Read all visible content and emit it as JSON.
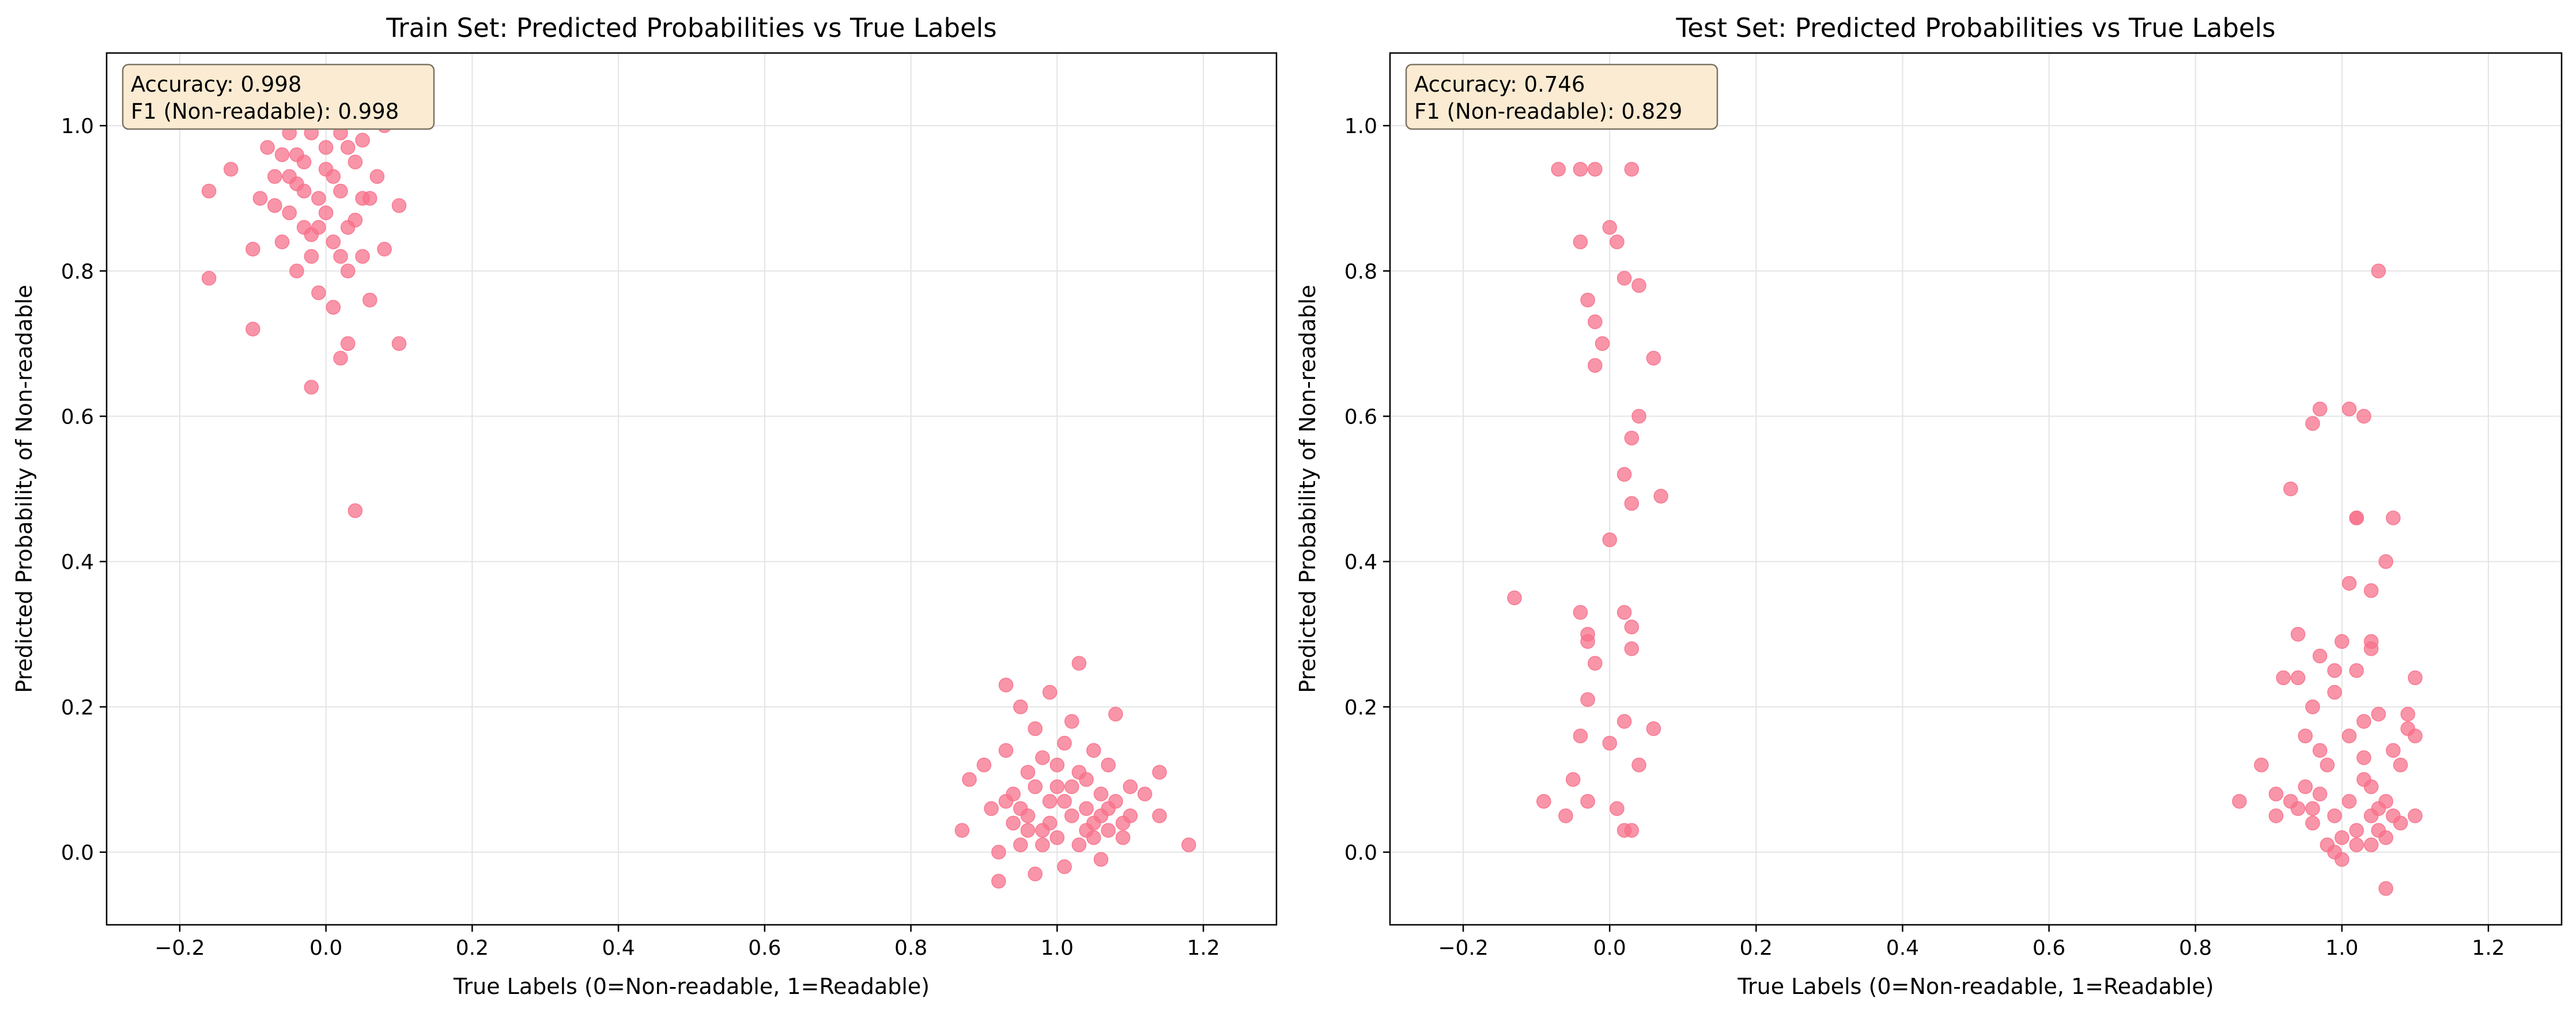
{
  "colors": {
    "point": "#f7718b",
    "annotation_bg": "#faebd2",
    "annotation_border": "#7d7464",
    "grid": "#e4e4e4",
    "axis": "#000000"
  },
  "chart_data": [
    {
      "type": "scatter",
      "title": "Train Set: Predicted Probabilities vs True Labels",
      "xlabel": "True Labels (0=Non-readable, 1=Readable)",
      "ylabel": "Predicted Probability of Non-readable",
      "xlim": [
        -0.3,
        1.3
      ],
      "ylim": [
        -0.1,
        1.1
      ],
      "xticks": [
        "−0.2",
        "0.0",
        "0.2",
        "0.4",
        "0.6",
        "0.8",
        "1.0",
        "1.2"
      ],
      "yticks": [
        "0.0",
        "0.2",
        "0.4",
        "0.6",
        "0.8",
        "1.0"
      ],
      "grid": true,
      "annotation": {
        "accuracy": "Accuracy: 0.998",
        "f1": "F1 (Non-readable): 0.998"
      },
      "series": [
        {
          "points": [
            [
              -0.16,
              0.91
            ],
            [
              -0.16,
              0.79
            ],
            [
              -0.13,
              0.94
            ],
            [
              -0.1,
              0.72
            ],
            [
              -0.1,
              0.83
            ],
            [
              -0.09,
              0.9
            ],
            [
              -0.08,
              0.97
            ],
            [
              -0.07,
              0.93
            ],
            [
              -0.06,
              0.96
            ],
            [
              -0.06,
              0.84
            ],
            [
              -0.05,
              0.99
            ],
            [
              -0.05,
              0.88
            ],
            [
              -0.04,
              0.8
            ],
            [
              -0.04,
              0.92
            ],
            [
              -0.03,
              0.86
            ],
            [
              -0.03,
              0.95
            ],
            [
              -0.02,
              0.99
            ],
            [
              -0.02,
              0.82
            ],
            [
              -0.02,
              0.64
            ],
            [
              -0.01,
              0.9
            ],
            [
              -0.01,
              0.77
            ],
            [
              0.0,
              0.97
            ],
            [
              0.0,
              0.88
            ],
            [
              0.01,
              0.84
            ],
            [
              0.01,
              0.93
            ],
            [
              0.01,
              0.75
            ],
            [
              0.02,
              0.99
            ],
            [
              0.02,
              0.91
            ],
            [
              0.02,
              0.68
            ],
            [
              0.03,
              0.86
            ],
            [
              0.03,
              0.8
            ],
            [
              0.03,
              0.7
            ],
            [
              0.04,
              0.95
            ],
            [
              0.04,
              0.47
            ],
            [
              0.04,
              0.87
            ],
            [
              0.05,
              0.98
            ],
            [
              0.05,
              0.82
            ],
            [
              0.06,
              0.9
            ],
            [
              0.06,
              0.76
            ],
            [
              0.07,
              0.93
            ],
            [
              0.08,
              0.83
            ],
            [
              0.08,
              1.0
            ],
            [
              0.1,
              0.89
            ],
            [
              0.1,
              0.7
            ],
            [
              -0.07,
              0.89
            ],
            [
              -0.05,
              0.93
            ],
            [
              -0.03,
              0.91
            ],
            [
              0.0,
              0.94
            ],
            [
              0.02,
              0.82
            ],
            [
              -0.01,
              0.86
            ],
            [
              0.05,
              0.9
            ],
            [
              -0.04,
              0.96
            ],
            [
              0.03,
              0.97
            ],
            [
              -0.02,
              0.85
            ]
          ]
        },
        {
          "points": [
            [
              0.87,
              0.03
            ],
            [
              0.88,
              0.1
            ],
            [
              0.9,
              0.12
            ],
            [
              0.91,
              0.06
            ],
            [
              0.92,
              0.0
            ],
            [
              0.92,
              -0.04
            ],
            [
              0.93,
              0.23
            ],
            [
              0.93,
              0.14
            ],
            [
              0.94,
              0.04
            ],
            [
              0.94,
              0.08
            ],
            [
              0.95,
              0.2
            ],
            [
              0.95,
              0.01
            ],
            [
              0.96,
              0.11
            ],
            [
              0.96,
              0.05
            ],
            [
              0.97,
              0.17
            ],
            [
              0.97,
              -0.03
            ],
            [
              0.98,
              0.03
            ],
            [
              0.98,
              0.13
            ],
            [
              0.99,
              0.07
            ],
            [
              0.99,
              0.22
            ],
            [
              1.0,
              0.02
            ],
            [
              1.0,
              0.09
            ],
            [
              1.01,
              0.15
            ],
            [
              1.01,
              -0.02
            ],
            [
              1.02,
              0.05
            ],
            [
              1.02,
              0.18
            ],
            [
              1.03,
              0.26
            ],
            [
              1.03,
              0.01
            ],
            [
              1.04,
              0.1
            ],
            [
              1.04,
              0.06
            ],
            [
              1.05,
              0.04
            ],
            [
              1.05,
              0.14
            ],
            [
              1.06,
              0.08
            ],
            [
              1.06,
              -0.01
            ],
            [
              1.07,
              0.12
            ],
            [
              1.07,
              0.03
            ],
            [
              1.08,
              0.19
            ],
            [
              1.08,
              0.07
            ],
            [
              1.09,
              0.02
            ],
            [
              1.1,
              0.09
            ],
            [
              1.1,
              0.05
            ],
            [
              1.12,
              0.08
            ],
            [
              1.14,
              0.11
            ],
            [
              1.14,
              0.05
            ],
            [
              1.18,
              0.01
            ],
            [
              0.95,
              0.06
            ],
            [
              0.97,
              0.09
            ],
            [
              0.99,
              0.04
            ],
            [
              1.01,
              0.07
            ],
            [
              1.03,
              0.11
            ],
            [
              1.05,
              0.02
            ],
            [
              1.07,
              0.06
            ],
            [
              0.96,
              0.03
            ],
            [
              0.98,
              0.01
            ],
            [
              1.0,
              0.12
            ],
            [
              1.02,
              0.09
            ],
            [
              1.04,
              0.03
            ],
            [
              1.06,
              0.05
            ],
            [
              0.93,
              0.07
            ],
            [
              1.09,
              0.04
            ]
          ]
        }
      ]
    },
    {
      "type": "scatter",
      "title": "Test Set: Predicted Probabilities vs True Labels",
      "xlabel": "True Labels (0=Non-readable, 1=Readable)",
      "ylabel": "Predicted Probability of Non-readable",
      "xlim": [
        -0.3,
        1.3
      ],
      "ylim": [
        -0.1,
        1.1
      ],
      "xticks": [
        "−0.2",
        "0.0",
        "0.2",
        "0.4",
        "0.6",
        "0.8",
        "1.0",
        "1.2"
      ],
      "yticks": [
        "0.0",
        "0.2",
        "0.4",
        "0.6",
        "0.8",
        "1.0"
      ],
      "grid": true,
      "annotation": {
        "accuracy": "Accuracy: 0.746",
        "f1": "F1 (Non-readable): 0.829"
      },
      "series": [
        {
          "points": [
            [
              -0.13,
              0.35
            ],
            [
              -0.09,
              0.07
            ],
            [
              -0.07,
              0.94
            ],
            [
              -0.06,
              0.05
            ],
            [
              -0.05,
              0.1
            ],
            [
              -0.04,
              0.94
            ],
            [
              -0.04,
              0.84
            ],
            [
              -0.04,
              0.33
            ],
            [
              -0.04,
              0.16
            ],
            [
              -0.03,
              0.76
            ],
            [
              -0.03,
              0.3
            ],
            [
              -0.03,
              0.21
            ],
            [
              -0.03,
              0.07
            ],
            [
              -0.02,
              0.94
            ],
            [
              -0.02,
              0.67
            ],
            [
              -0.02,
              0.73
            ],
            [
              -0.02,
              0.26
            ],
            [
              -0.01,
              0.7
            ],
            [
              0.0,
              0.86
            ],
            [
              0.0,
              0.43
            ],
            [
              0.0,
              0.15
            ],
            [
              0.01,
              0.84
            ],
            [
              0.01,
              0.06
            ],
            [
              0.02,
              0.52
            ],
            [
              0.02,
              0.33
            ],
            [
              0.02,
              0.18
            ],
            [
              0.02,
              0.03
            ],
            [
              0.02,
              0.79
            ],
            [
              0.03,
              0.94
            ],
            [
              0.03,
              0.57
            ],
            [
              0.03,
              0.48
            ],
            [
              0.03,
              0.31
            ],
            [
              0.03,
              0.28
            ],
            [
              0.03,
              0.03
            ],
            [
              0.04,
              0.6
            ],
            [
              0.04,
              0.78
            ],
            [
              0.04,
              0.12
            ],
            [
              0.06,
              0.68
            ],
            [
              0.06,
              0.17
            ],
            [
              0.07,
              0.49
            ],
            [
              -0.03,
              0.29
            ]
          ]
        },
        {
          "points": [
            [
              0.86,
              0.07
            ],
            [
              0.89,
              0.12
            ],
            [
              0.91,
              0.08
            ],
            [
              0.91,
              0.05
            ],
            [
              0.92,
              0.24
            ],
            [
              0.93,
              0.07
            ],
            [
              0.93,
              0.5
            ],
            [
              0.94,
              0.24
            ],
            [
              0.94,
              0.06
            ],
            [
              0.94,
              0.3
            ],
            [
              0.95,
              0.09
            ],
            [
              0.95,
              0.16
            ],
            [
              0.96,
              0.59
            ],
            [
              0.96,
              0.06
            ],
            [
              0.96,
              0.04
            ],
            [
              0.96,
              0.2
            ],
            [
              0.97,
              0.27
            ],
            [
              0.97,
              0.61
            ],
            [
              0.97,
              0.14
            ],
            [
              0.97,
              0.08
            ],
            [
              0.98,
              0.01
            ],
            [
              0.98,
              0.12
            ],
            [
              0.99,
              0.25
            ],
            [
              0.99,
              0.22
            ],
            [
              0.99,
              0.0
            ],
            [
              1.0,
              -0.01
            ],
            [
              1.0,
              0.29
            ],
            [
              1.0,
              0.02
            ],
            [
              1.01,
              0.61
            ],
            [
              1.01,
              0.37
            ],
            [
              1.01,
              0.07
            ],
            [
              1.01,
              0.16
            ],
            [
              1.02,
              0.46
            ],
            [
              1.02,
              0.46
            ],
            [
              1.02,
              0.25
            ],
            [
              1.02,
              0.01
            ],
            [
              1.03,
              0.6
            ],
            [
              1.03,
              0.1
            ],
            [
              1.03,
              0.18
            ],
            [
              1.03,
              0.13
            ],
            [
              1.04,
              0.36
            ],
            [
              1.04,
              0.29
            ],
            [
              1.04,
              0.28
            ],
            [
              1.04,
              0.05
            ],
            [
              1.04,
              0.01
            ],
            [
              1.05,
              0.8
            ],
            [
              1.05,
              0.19
            ],
            [
              1.05,
              0.06
            ],
            [
              1.05,
              0.03
            ],
            [
              1.06,
              0.4
            ],
            [
              1.06,
              -0.05
            ],
            [
              1.06,
              0.07
            ],
            [
              1.07,
              0.46
            ],
            [
              1.07,
              0.14
            ],
            [
              1.07,
              0.05
            ],
            [
              1.08,
              0.04
            ],
            [
              1.09,
              0.17
            ],
            [
              1.09,
              0.19
            ],
            [
              1.1,
              0.24
            ],
            [
              1.1,
              0.16
            ],
            [
              1.1,
              0.05
            ],
            [
              1.02,
              0.03
            ],
            [
              0.99,
              0.05
            ],
            [
              1.04,
              0.09
            ],
            [
              1.06,
              0.02
            ],
            [
              1.08,
              0.12
            ]
          ]
        }
      ]
    }
  ]
}
